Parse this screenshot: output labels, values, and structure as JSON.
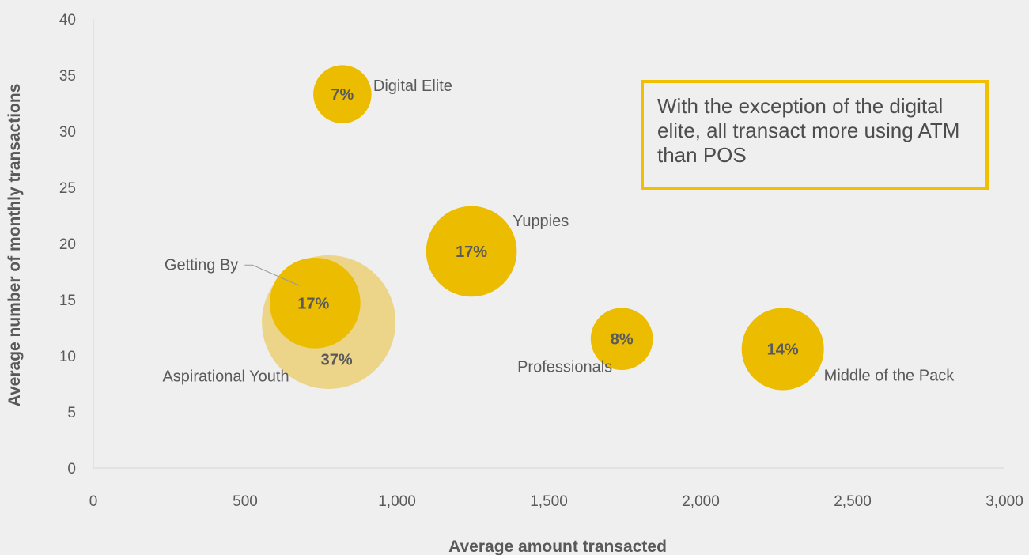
{
  "chart_data": {
    "type": "bubble",
    "xlabel": "Average amount transacted",
    "ylabel": "Average number of monthly transactions",
    "xlim": [
      0,
      3000
    ],
    "ylim": [
      0,
      40
    ],
    "xticks": [
      0,
      500,
      1000,
      1500,
      2000,
      2500,
      3000
    ],
    "xtick_labels": [
      "0",
      "500",
      "1,000",
      "1,500",
      "2,000",
      "2,500",
      "3,000"
    ],
    "yticks": [
      0,
      5,
      10,
      15,
      20,
      25,
      30,
      35,
      40
    ],
    "ytick_labels": [
      "0",
      "5",
      "10",
      "15",
      "20",
      "25",
      "30",
      "35",
      "40"
    ],
    "grid": false,
    "points": [
      {
        "segment": "Aspirational Youth",
        "x": 775,
        "y": 13,
        "share": 37,
        "share_label": "37%",
        "color": "#ecd588"
      },
      {
        "segment": "Getting By",
        "x": 730,
        "y": 14.7,
        "share": 17,
        "share_label": "17%",
        "color": "#ebbc00"
      },
      {
        "segment": "Digital Elite",
        "x": 820,
        "y": 33.3,
        "share": 7,
        "share_label": "7%",
        "color": "#ebbc00"
      },
      {
        "segment": "Yuppies",
        "x": 1245,
        "y": 19.3,
        "share": 17,
        "share_label": "17%",
        "color": "#ebbc00"
      },
      {
        "segment": "Professionals",
        "x": 1740,
        "y": 11.5,
        "share": 8,
        "share_label": "8%",
        "color": "#ebbc00"
      },
      {
        "segment": "Middle of the Pack",
        "x": 2270,
        "y": 10.6,
        "share": 14,
        "share_label": "14%",
        "color": "#ebbc00"
      }
    ]
  },
  "callout": {
    "text": "With the exception of the digital elite, all transact more using ATM than POS",
    "border_color": "#f0c000"
  }
}
